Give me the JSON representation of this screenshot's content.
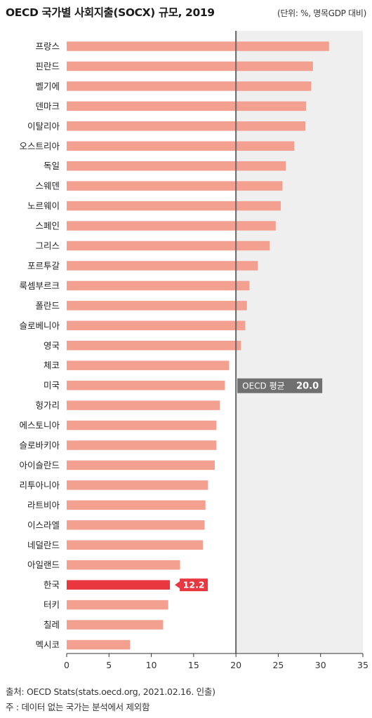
{
  "header": {
    "title": "OECD 국가별 사회지출(SOCX) 규모, 2019",
    "unit": "(단위: %, 명목GDP 대비)"
  },
  "footer": {
    "source": "출처: OECD Stats(stats.oecd.org, 2021.02.16. 인출)",
    "note": "주  : 데이터 없는 국가는 분석에서 제외함"
  },
  "colors": {
    "bar": "#f4a090",
    "highlight": "#e8373f",
    "average_line": "#666666",
    "average_badge": "#707070",
    "plot_background": "#efefef"
  },
  "chart_data": {
    "type": "bar",
    "orientation": "horizontal",
    "categories": [
      "프랑스",
      "핀란드",
      "벨기에",
      "덴마크",
      "이탈리아",
      "오스트리아",
      "독일",
      "스웨덴",
      "노르웨이",
      "스페인",
      "그리스",
      "포르투갈",
      "룩셈부르크",
      "폴란드",
      "슬로베니아",
      "영국",
      "체코",
      "미국",
      "헝가리",
      "에스토니아",
      "슬로바키아",
      "아이슬란드",
      "리투아니아",
      "라트비아",
      "이스라엘",
      "네덜란드",
      "아일랜드",
      "한국",
      "터키",
      "칠레",
      "멕시코"
    ],
    "values": [
      31.0,
      29.1,
      28.9,
      28.3,
      28.2,
      26.9,
      25.9,
      25.5,
      25.3,
      24.7,
      24.0,
      22.6,
      21.6,
      21.3,
      21.1,
      20.6,
      19.2,
      18.7,
      18.1,
      17.7,
      17.7,
      17.5,
      16.7,
      16.4,
      16.3,
      16.1,
      13.4,
      12.2,
      12.0,
      11.4,
      7.5
    ],
    "highlight": {
      "category": "한국",
      "label": "12.2"
    },
    "average": {
      "label": "OECD 평균",
      "value_label": "20.0",
      "value": 20.0
    },
    "xlim": [
      0,
      35
    ],
    "xticks": [
      0,
      5,
      10,
      15,
      20,
      25,
      30,
      35
    ],
    "shaded_region_from": 20
  }
}
